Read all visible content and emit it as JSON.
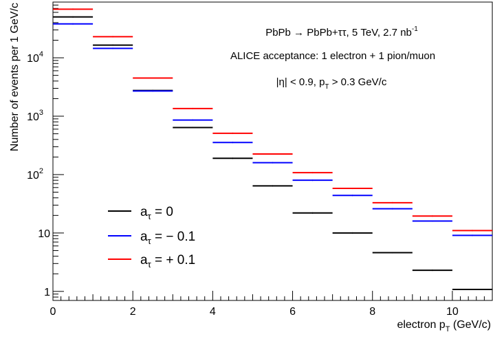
{
  "chart_data": {
    "type": "step-histogram",
    "xlabel_main": "electron p",
    "xlabel_sub": "T",
    "xlabel_unit": " (GeV/c)",
    "ylabel": "Number of events per 1 GeV/c",
    "xlim": [
      0,
      11
    ],
    "ylim": [
      0.7,
      90000
    ],
    "yscale": "log",
    "bin_edges": [
      0,
      1,
      2,
      3,
      4,
      5,
      6,
      7,
      8,
      9,
      10,
      11
    ],
    "x_ticks": [
      {
        "value": 0,
        "label": "0"
      },
      {
        "value": 2,
        "label": "2"
      },
      {
        "value": 4,
        "label": "4"
      },
      {
        "value": 6,
        "label": "6"
      },
      {
        "value": 8,
        "label": "8"
      },
      {
        "value": 10,
        "label": "10"
      }
    ],
    "y_ticks": [
      {
        "value": 1,
        "base": "1",
        "exp": ""
      },
      {
        "value": 10,
        "base": "10",
        "exp": ""
      },
      {
        "value": 100,
        "base": "10",
        "exp": "2"
      },
      {
        "value": 1000,
        "base": "10",
        "exp": "3"
      },
      {
        "value": 10000,
        "base": "10",
        "exp": "4"
      }
    ],
    "series": [
      {
        "name": "a_τ = 0",
        "legend_main": "a",
        "legend_sub": "τ",
        "legend_rest": " = 0",
        "color": "#000000",
        "values": [
          50000,
          16500,
          2750,
          640,
          190,
          64,
          22,
          10,
          4.6,
          2.3,
          1.08
        ]
      },
      {
        "name": "a_τ = − 0.1",
        "legend_main": "a",
        "legend_sub": "τ",
        "legend_rest": " = − 0.1",
        "color": "#0000ff",
        "values": [
          38000,
          14500,
          2700,
          860,
          355,
          160,
          80,
          44,
          26,
          16,
          9.1
        ]
      },
      {
        "name": "a_τ = + 0.1",
        "legend_main": "a",
        "legend_sub": "τ",
        "legend_rest": " = + 0.1",
        "color": "#ff0000",
        "values": [
          68000,
          23000,
          4500,
          1350,
          510,
          225,
          108,
          58,
          33,
          19.5,
          11
        ]
      }
    ],
    "annotations": {
      "line1_main": "PbPb → PbPb+ττ, 5 TeV, 2.7 nb",
      "line1_sup": "-1",
      "line2": "ALICE acceptance: 1 electron + 1 pion/muon",
      "line3_pre": "|η| < 0.9, p",
      "line3_sub": "T",
      "line3_post": " > 0.3 GeV/c"
    },
    "legend_position": "bottom-left",
    "grid": false
  }
}
